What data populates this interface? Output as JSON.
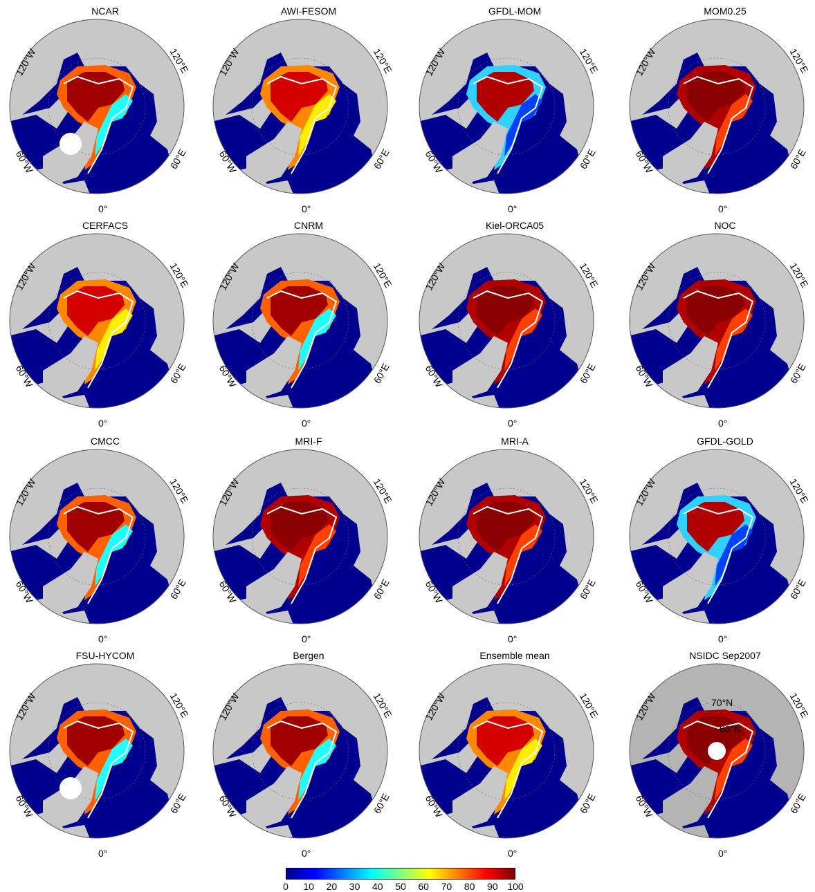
{
  "panels": [
    {
      "title": "NCAR",
      "ice": "weak"
    },
    {
      "title": "AWI-FESOM",
      "ice": "mixed"
    },
    {
      "title": "GFDL-MOM",
      "ice": "mixed-blue"
    },
    {
      "title": "MOM0.25",
      "ice": "full"
    },
    {
      "title": "CERFACS",
      "ice": "mixed"
    },
    {
      "title": "CNRM",
      "ice": "weak"
    },
    {
      "title": "Kiel-ORCA05",
      "ice": "full"
    },
    {
      "title": "NOC",
      "ice": "full"
    },
    {
      "title": "CMCC",
      "ice": "weak"
    },
    {
      "title": "MRI-F",
      "ice": "full"
    },
    {
      "title": "MRI-A",
      "ice": "full"
    },
    {
      "title": "GFDL-GOLD",
      "ice": "mixed-blue"
    },
    {
      "title": "FSU-HYCOM",
      "ice": "weak"
    },
    {
      "title": "Bergen",
      "ice": "weak"
    },
    {
      "title": "Ensemble mean",
      "ice": "mixed"
    },
    {
      "title": "NSIDC Sep2007",
      "ice": "full"
    }
  ],
  "axis_labels": {
    "lon_120w": "120°W",
    "lon_120e": "120°E",
    "lon_60w": "60°W",
    "lon_60e": "60°E",
    "lon_0": "0°"
  },
  "nsidc_lat_labels": {
    "lat_70": "70°N",
    "lat_80": "80°N"
  },
  "colorbar": {
    "ticks": [
      "0",
      "10",
      "20",
      "30",
      "40",
      "50",
      "60",
      "70",
      "80",
      "90",
      "100"
    ],
    "range": [
      0,
      100
    ]
  },
  "colors": {
    "ocean": "#00008f",
    "land": "#c8c8c8",
    "ice_high": "#8b0000",
    "contour": "#ffffff"
  }
}
